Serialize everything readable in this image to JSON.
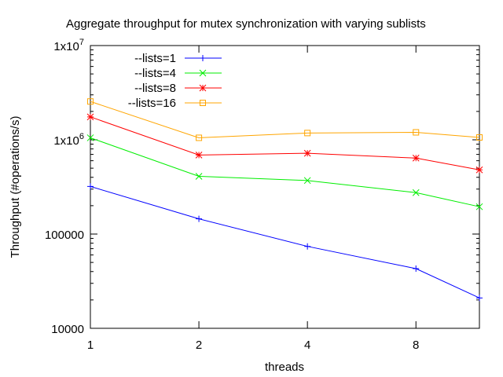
{
  "chart_data": {
    "type": "line",
    "title": "Aggregate throughput for mutex synchronization with varying sublists",
    "xlabel": "threads",
    "ylabel": "Throughput (#operations/s)",
    "xscale": "log2",
    "yscale": "log10",
    "xlim": [
      1,
      12
    ],
    "ylim": [
      10000,
      10000000
    ],
    "x_ticks": [
      {
        "value": 1,
        "label": "1"
      },
      {
        "value": 2,
        "label": "2"
      },
      {
        "value": 4,
        "label": "4"
      },
      {
        "value": 8,
        "label": "8"
      }
    ],
    "y_ticks": [
      {
        "value": 10000,
        "label": "10000",
        "sup": ""
      },
      {
        "value": 100000,
        "label": "100000",
        "sup": ""
      },
      {
        "value": 1000000,
        "label": "1x10",
        "sup": "6"
      },
      {
        "value": 10000000,
        "label": "1x10",
        "sup": "7"
      }
    ],
    "x": [
      1,
      2,
      4,
      8,
      12
    ],
    "series": [
      {
        "name": "--lists=1",
        "color": "#0000ff",
        "marker": "plus",
        "values": [
          320000,
          145000,
          74000,
          43000,
          21000
        ]
      },
      {
        "name": "--lists=4",
        "color": "#00ee00",
        "marker": "cross",
        "values": [
          1050000,
          410000,
          370000,
          275000,
          195000
        ]
      },
      {
        "name": "--lists=8",
        "color": "#ff0000",
        "marker": "star",
        "values": [
          1750000,
          690000,
          720000,
          640000,
          480000
        ]
      },
      {
        "name": "--lists=16",
        "color": "#ffa500",
        "marker": "square",
        "values": [
          2550000,
          1050000,
          1180000,
          1200000,
          1060000
        ]
      }
    ],
    "legend_position": "top-left",
    "grid": false
  }
}
